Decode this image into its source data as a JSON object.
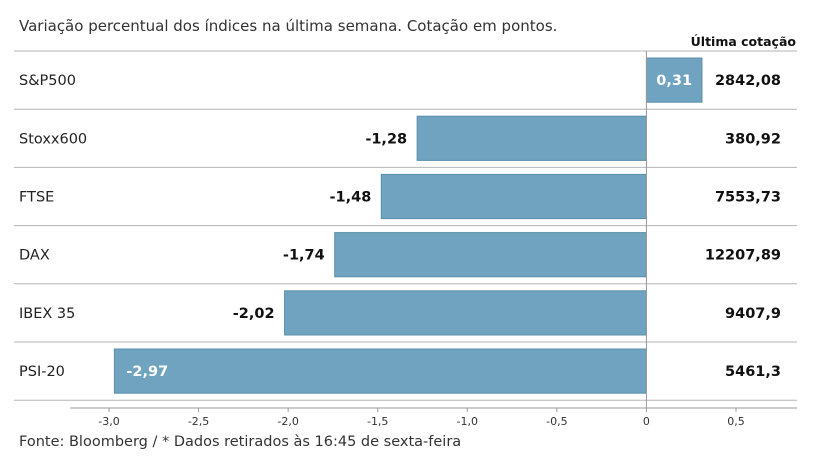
{
  "subtitle": "Variação percentual dos índices na última semana. Cotação em pontos.",
  "column_header": "Última cotação",
  "source": "Fonte: Bloomberg / * Dados retirados às 16:45 de sexta-feira",
  "colors": {
    "bar": "#6fa3bf",
    "bar_stroke": "#5b8fab",
    "separator": "#b5b5b5",
    "axis": "#999999"
  },
  "chart_data": {
    "type": "bar",
    "orientation": "horizontal",
    "categories": [
      "S&P500",
      "Stoxx600",
      "FTSE",
      "DAX",
      "IBEX 35",
      "PSI-20"
    ],
    "values": [
      0.31,
      -1.28,
      -1.48,
      -1.74,
      -2.02,
      -2.97
    ],
    "value_labels": [
      "0,31",
      "-1,28",
      "-1,48",
      "-1,74",
      "-2,02",
      "-2,97"
    ],
    "last_quote": [
      "2842,08",
      "380,92",
      "7553,73",
      "12207,89",
      "9407,9",
      "5461,3"
    ],
    "xlim": [
      -3.0,
      0.5
    ],
    "ticks": [
      -3.0,
      -2.5,
      -2.0,
      -1.5,
      -1.0,
      -0.5,
      0,
      0.5
    ],
    "tick_labels": [
      "-3,0",
      "-2,5",
      "-2,0",
      "-1,5",
      "-1,0",
      "-0,5",
      "0",
      "0,5"
    ],
    "grid": false
  }
}
